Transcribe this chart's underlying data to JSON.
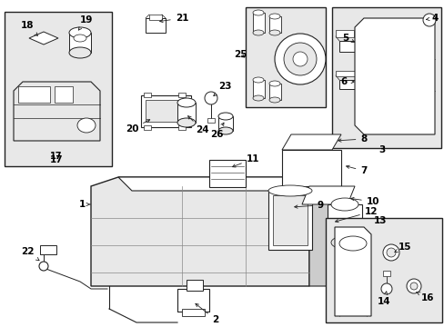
{
  "bg_color": "#f5f5f5",
  "line_color": "#222222",
  "white": "#ffffff",
  "gray_light": "#e8e8e8",
  "gray_mid": "#cccccc",
  "gray_dark": "#aaaaaa"
}
